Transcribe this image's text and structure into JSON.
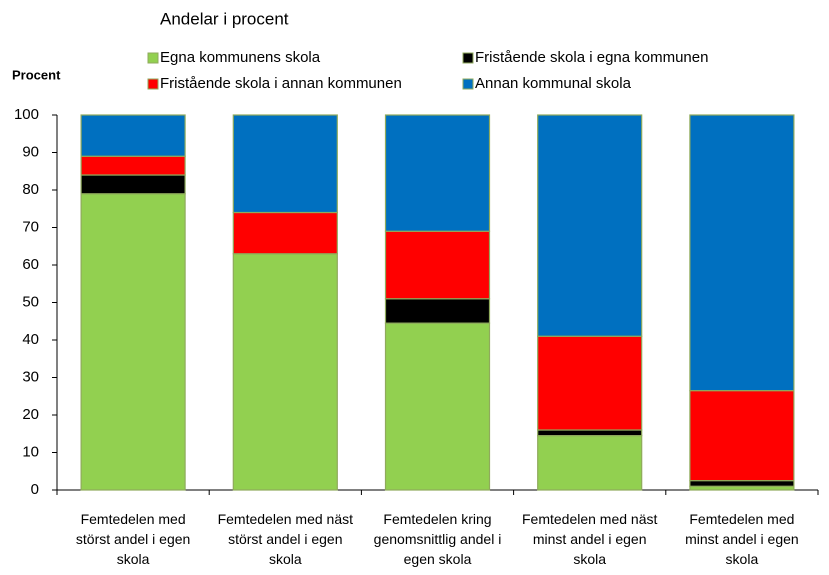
{
  "chart_data": {
    "type": "bar",
    "stacked": true,
    "title": "Andelar i procent",
    "y_label": "Procent",
    "categories": [
      "Femtedelen med störst andel i egen skola",
      "Femtedelen med näst störst andel i egen skola",
      "Femtedelen kring genomsnittlig andel i egen skola",
      "Femtedelen med näst minst andel i egen skola",
      "Femtedelen med minst andel i egen skola"
    ],
    "series": [
      {
        "name": "Egna kommunens skola",
        "color": "#92d050",
        "values": [
          79,
          63,
          44.5,
          14.5,
          1
        ]
      },
      {
        "name": "Fristående skola i egna kommunen",
        "color": "#000000",
        "values": [
          5,
          0,
          6.5,
          1.5,
          1.5
        ]
      },
      {
        "name": "Fristående skola i annan kommunen",
        "color": "#ff0000",
        "values": [
          5,
          11,
          18,
          25,
          24
        ]
      },
      {
        "name": "Annan kommunal skola",
        "color": "#0070c0",
        "values": [
          11,
          26,
          31,
          59,
          73.5
        ]
      }
    ],
    "ylim": [
      0,
      100
    ],
    "yticks": [
      0,
      10,
      20,
      30,
      40,
      50,
      60,
      70,
      80,
      90,
      100
    ],
    "grid": false
  }
}
